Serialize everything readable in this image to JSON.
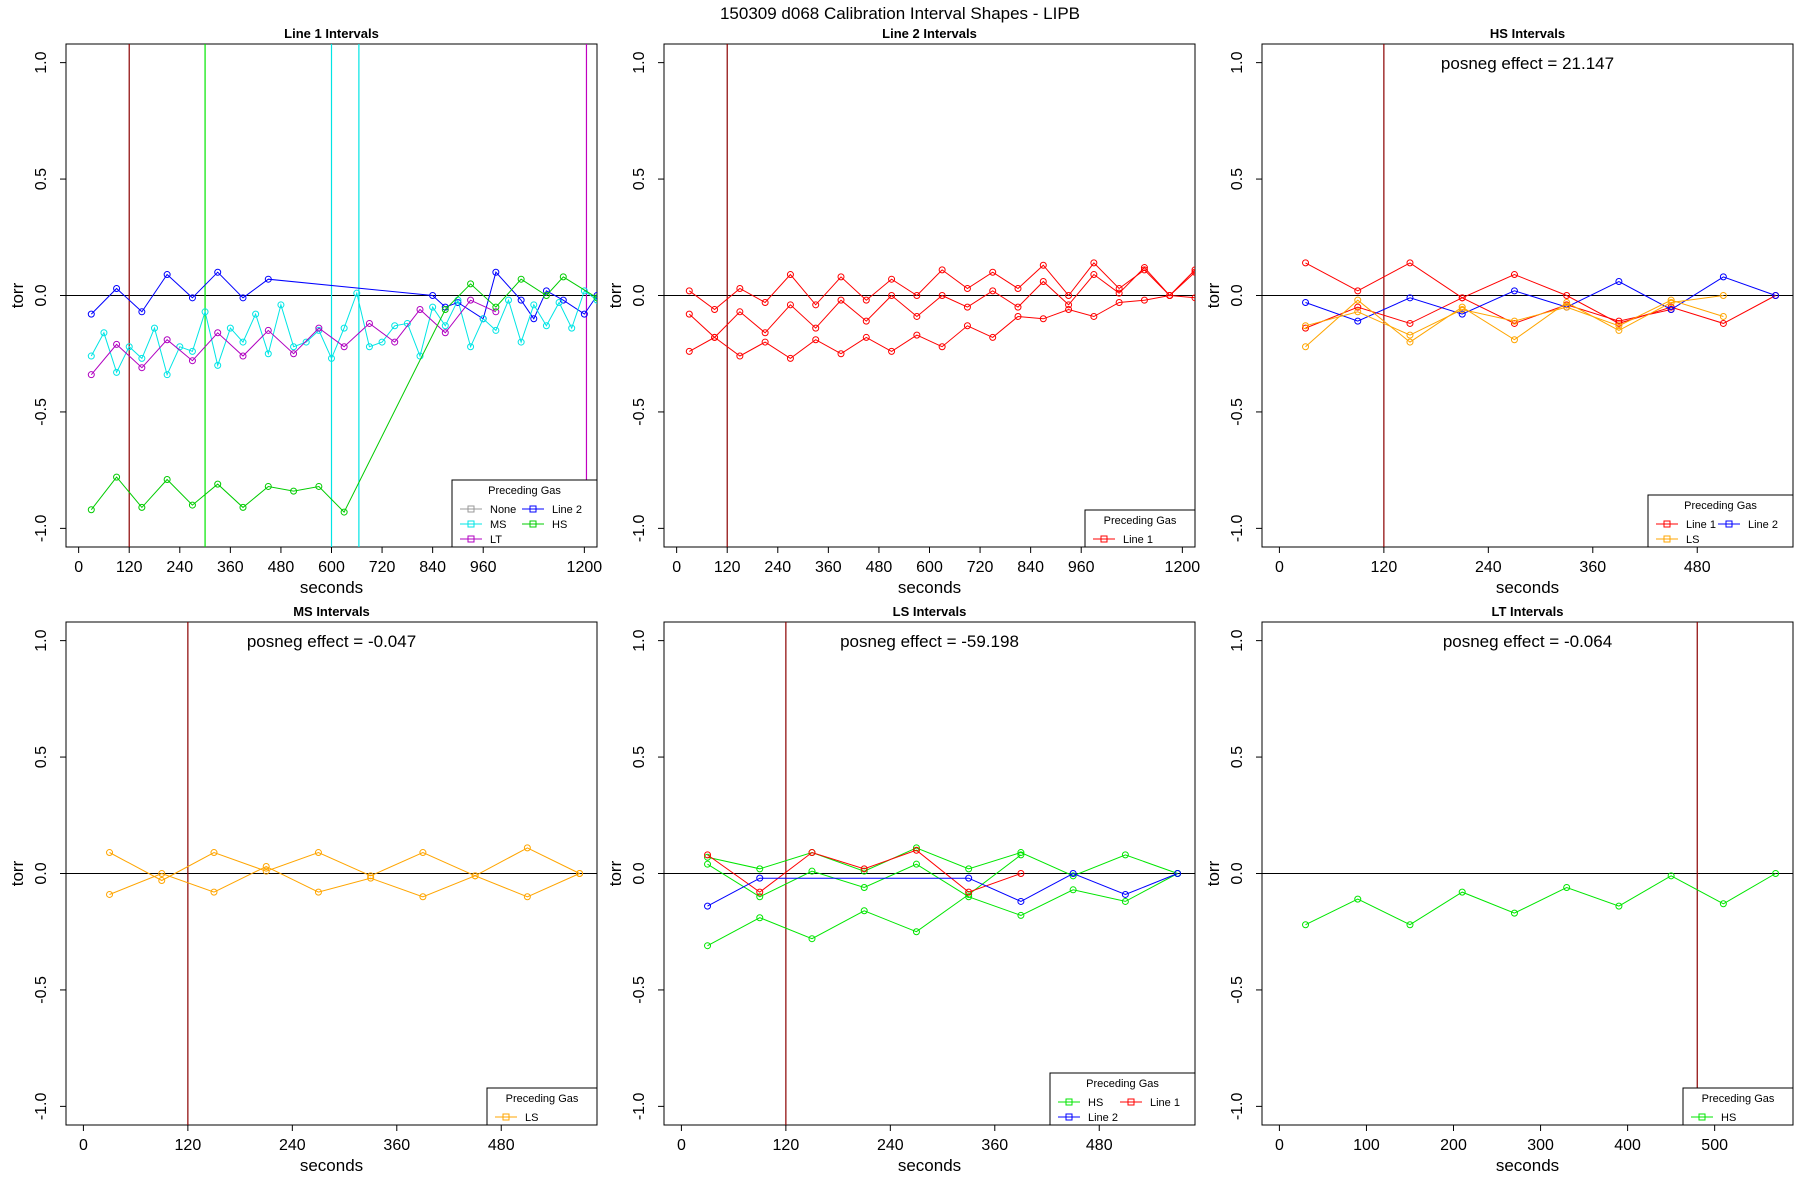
{
  "figure": {
    "title": "150309   d068   Calibration Interval Shapes - LIPB"
  },
  "chart_data": [
    {
      "type": "line",
      "title": "Line 1 Intervals",
      "xlabel": "seconds",
      "ylabel": "torr",
      "xlim": [
        -30,
        1230
      ],
      "ylim": [
        -1.08,
        1.08
      ],
      "xticks": [
        0,
        120,
        240,
        360,
        480,
        600,
        720,
        840,
        960,
        1200
      ],
      "yticks": [
        -1.0,
        -0.5,
        0.0,
        0.5,
        1.0
      ],
      "hline": 0,
      "vlines": [
        {
          "x": 120,
          "color": "#8b0000"
        },
        {
          "x": 300,
          "color": "#00e600"
        },
        {
          "x": 600,
          "color": "#00e5e5"
        },
        {
          "x": 665,
          "color": "#00e5e5"
        },
        {
          "x": 1205,
          "color": "#c000c0"
        }
      ],
      "annotation": "",
      "legend": {
        "title": "Preceding Gas",
        "position": "bottom-right",
        "columns": 2,
        "entries": [
          {
            "label": "None",
            "color": "#999999"
          },
          {
            "label": "Line 2",
            "color": "#0000ff"
          },
          {
            "label": "MS",
            "color": "#00e5e5"
          },
          {
            "label": "HS",
            "color": "#00cc00"
          },
          {
            "label": "LT",
            "color": "#b000c0"
          }
        ]
      },
      "series": [
        {
          "name": "Line 2",
          "color": "#0000ff",
          "x": [
            30,
            90,
            150,
            210,
            270,
            330,
            390,
            450,
            840,
            870,
            900,
            960,
            990,
            1050,
            1080,
            1110,
            1150,
            1200,
            1230
          ],
          "y": [
            -0.08,
            0.03,
            -0.07,
            0.09,
            -0.01,
            0.1,
            -0.01,
            0.07,
            0.0,
            -0.05,
            -0.03,
            -0.1,
            0.1,
            -0.02,
            -0.1,
            0.02,
            -0.02,
            -0.08,
            0.0
          ]
        },
        {
          "name": "MS",
          "color": "#00e5e5",
          "x": [
            30,
            60,
            90,
            120,
            150,
            180,
            210,
            240,
            270,
            300,
            330,
            360,
            390,
            420,
            450,
            480,
            510,
            540,
            570,
            600,
            630,
            660,
            690,
            720,
            750,
            780,
            810,
            840,
            870,
            900,
            930,
            960,
            990,
            1020,
            1050,
            1080,
            1110,
            1140,
            1170,
            1200,
            1230
          ],
          "y": [
            -0.26,
            -0.16,
            -0.33,
            -0.22,
            -0.27,
            -0.14,
            -0.34,
            -0.22,
            -0.24,
            -0.07,
            -0.3,
            -0.14,
            -0.2,
            -0.08,
            -0.25,
            -0.04,
            -0.22,
            -0.2,
            -0.15,
            -0.27,
            -0.14,
            0.01,
            -0.22,
            -0.2,
            -0.13,
            -0.12,
            -0.26,
            -0.05,
            -0.13,
            -0.02,
            -0.22,
            -0.1,
            -0.15,
            -0.02,
            -0.2,
            -0.04,
            -0.13,
            -0.03,
            -0.14,
            0.02,
            -0.02
          ]
        },
        {
          "name": "LT",
          "color": "#b000c0",
          "x": [
            30,
            90,
            150,
            210,
            270,
            330,
            390,
            450,
            510,
            570,
            630,
            690,
            750,
            810,
            870,
            930,
            990
          ],
          "y": [
            -0.34,
            -0.21,
            -0.31,
            -0.19,
            -0.28,
            -0.16,
            -0.26,
            -0.15,
            -0.25,
            -0.14,
            -0.22,
            -0.12,
            -0.2,
            -0.06,
            -0.16,
            -0.02,
            -0.07
          ]
        },
        {
          "name": "HS",
          "color": "#00cc00",
          "x": [
            30,
            90,
            150,
            210,
            270,
            330,
            390,
            450,
            510,
            570,
            630,
            870,
            930,
            990,
            1050,
            1110,
            1150,
            1230
          ],
          "y": [
            -0.92,
            -0.78,
            -0.91,
            -0.79,
            -0.9,
            -0.81,
            -0.91,
            -0.82,
            -0.84,
            -0.82,
            -0.93,
            -0.06,
            0.05,
            -0.05,
            0.07,
            0.0,
            0.08,
            -0.01
          ]
        }
      ]
    },
    {
      "type": "line",
      "title": "Line 2 Intervals",
      "xlabel": "seconds",
      "ylabel": "torr",
      "xlim": [
        -30,
        1230
      ],
      "ylim": [
        -1.08,
        1.08
      ],
      "xticks": [
        0,
        120,
        240,
        360,
        480,
        600,
        720,
        840,
        960,
        1200
      ],
      "yticks": [
        -1.0,
        -0.5,
        0.0,
        0.5,
        1.0
      ],
      "hline": 0,
      "vlines": [
        {
          "x": 120,
          "color": "#8b0000"
        }
      ],
      "annotation": "",
      "legend": {
        "title": "Preceding Gas",
        "position": "bottom-right",
        "columns": 1,
        "entries": [
          {
            "label": "Line 1",
            "color": "#ff0000"
          }
        ]
      },
      "series": [
        {
          "name": "Line 1 (a)",
          "color": "#ff0000",
          "x": [
            30,
            90,
            150,
            210,
            270,
            330,
            390,
            450,
            510,
            570,
            630,
            690,
            750,
            810,
            870,
            930,
            990,
            1050,
            1110,
            1170,
            1230
          ],
          "y": [
            0.02,
            -0.06,
            0.03,
            -0.03,
            0.09,
            -0.04,
            0.08,
            -0.02,
            0.07,
            0.0,
            0.11,
            0.03,
            0.1,
            0.03,
            0.13,
            0.0,
            0.14,
            0.03,
            0.11,
            0.0,
            0.11
          ]
        },
        {
          "name": "Line 1 (b)",
          "color": "#ff0000",
          "x": [
            30,
            90,
            150,
            210,
            270,
            330,
            390,
            450,
            510,
            570,
            630,
            690,
            750,
            810,
            870,
            930,
            990,
            1050,
            1110,
            1170,
            1230
          ],
          "y": [
            -0.08,
            -0.18,
            -0.07,
            -0.16,
            -0.04,
            -0.14,
            -0.02,
            -0.11,
            0.0,
            -0.09,
            0.0,
            -0.05,
            0.02,
            -0.05,
            0.06,
            -0.04,
            0.09,
            0.01,
            0.12,
            0.0,
            0.1
          ]
        },
        {
          "name": "Line 1 (c)",
          "color": "#ff0000",
          "x": [
            30,
            90,
            150,
            210,
            270,
            330,
            390,
            450,
            510,
            570,
            630,
            690,
            750,
            810,
            870,
            930,
            990,
            1050,
            1110,
            1170,
            1230
          ],
          "y": [
            -0.24,
            -0.18,
            -0.26,
            -0.2,
            -0.27,
            -0.19,
            -0.25,
            -0.18,
            -0.24,
            -0.17,
            -0.22,
            -0.13,
            -0.18,
            -0.09,
            -0.1,
            -0.06,
            -0.09,
            -0.03,
            -0.02,
            0.0,
            -0.01
          ]
        }
      ]
    },
    {
      "type": "line",
      "title": "HS Intervals",
      "xlabel": "seconds",
      "ylabel": "torr",
      "xlim": [
        -20,
        590
      ],
      "ylim": [
        -1.08,
        1.08
      ],
      "xticks": [
        0,
        120,
        240,
        360,
        480
      ],
      "yticks": [
        -1.0,
        -0.5,
        0.0,
        0.5,
        1.0
      ],
      "hline": 0,
      "vlines": [
        {
          "x": 120,
          "color": "#8b0000"
        }
      ],
      "annotation": "posneg effect = 21.147",
      "legend": {
        "title": "Preceding Gas",
        "position": "bottom-right",
        "columns": 2,
        "entries": [
          {
            "label": "Line 1",
            "color": "#ff0000"
          },
          {
            "label": "Line 2",
            "color": "#0000ff"
          },
          {
            "label": "LS",
            "color": "#ffa500"
          }
        ]
      },
      "series": [
        {
          "name": "Line 1 (a)",
          "color": "#ff0000",
          "x": [
            30,
            90,
            150,
            210,
            270,
            330,
            390,
            450,
            510,
            570
          ],
          "y": [
            0.14,
            0.02,
            0.14,
            -0.01,
            0.09,
            0.0,
            -0.12,
            -0.05,
            -0.12,
            0.0
          ]
        },
        {
          "name": "Line 1 (b)",
          "color": "#ff0000",
          "x": [
            30,
            90,
            150,
            210,
            270,
            330,
            390,
            450
          ],
          "y": [
            -0.14,
            -0.05,
            -0.12,
            -0.01,
            -0.12,
            -0.04,
            -0.11,
            -0.06
          ]
        },
        {
          "name": "Line 2",
          "color": "#0000ff",
          "x": [
            30,
            90,
            150,
            210,
            270,
            330,
            390,
            450,
            510,
            570
          ],
          "y": [
            -0.03,
            -0.11,
            -0.01,
            -0.08,
            0.02,
            -0.05,
            0.06,
            -0.06,
            0.08,
            0.0
          ]
        },
        {
          "name": "LS (a)",
          "color": "#ffa500",
          "x": [
            30,
            90,
            150,
            210,
            270,
            330,
            390,
            450,
            510
          ],
          "y": [
            -0.22,
            -0.02,
            -0.2,
            -0.05,
            -0.19,
            -0.03,
            -0.15,
            -0.03,
            0.0
          ]
        },
        {
          "name": "LS (b)",
          "color": "#ffa500",
          "x": [
            30,
            90,
            150,
            210,
            270,
            330,
            390,
            450,
            510
          ],
          "y": [
            -0.13,
            -0.07,
            -0.17,
            -0.06,
            -0.11,
            -0.05,
            -0.13,
            -0.02,
            -0.09
          ]
        }
      ]
    },
    {
      "type": "line",
      "title": "MS Intervals",
      "xlabel": "seconds",
      "ylabel": "torr",
      "xlim": [
        -20,
        590
      ],
      "ylim": [
        -1.08,
        1.08
      ],
      "xticks": [
        0,
        120,
        240,
        360,
        480
      ],
      "yticks": [
        -1.0,
        -0.5,
        0.0,
        0.5,
        1.0
      ],
      "hline": 0,
      "vlines": [
        {
          "x": 120,
          "color": "#8b0000"
        }
      ],
      "annotation": "posneg effect = -0.047",
      "legend": {
        "title": "Preceding Gas",
        "position": "bottom-right",
        "columns": 1,
        "entries": [
          {
            "label": "LS",
            "color": "#ffa500"
          }
        ]
      },
      "series": [
        {
          "name": "LS (a)",
          "color": "#ffa500",
          "x": [
            30,
            90,
            150,
            210,
            270,
            330,
            390,
            450,
            510,
            570
          ],
          "y": [
            0.09,
            -0.03,
            0.09,
            0.01,
            0.09,
            -0.01,
            0.09,
            -0.01,
            0.11,
            0.0
          ]
        },
        {
          "name": "LS (b)",
          "color": "#ffa500",
          "x": [
            30,
            90,
            150,
            210,
            270,
            330,
            390,
            450,
            510,
            570
          ],
          "y": [
            -0.09,
            0.0,
            -0.08,
            0.03,
            -0.08,
            -0.02,
            -0.1,
            -0.01,
            -0.1,
            0.0
          ]
        }
      ]
    },
    {
      "type": "line",
      "title": "LS Intervals",
      "xlabel": "seconds",
      "ylabel": "torr",
      "xlim": [
        -20,
        590
      ],
      "ylim": [
        -1.08,
        1.08
      ],
      "xticks": [
        0,
        120,
        240,
        360,
        480
      ],
      "yticks": [
        -1.0,
        -0.5,
        0.0,
        0.5,
        1.0
      ],
      "hline": 0,
      "vlines": [
        {
          "x": 120,
          "color": "#8b0000"
        }
      ],
      "annotation": "posneg effect = -59.198",
      "legend": {
        "title": "Preceding Gas",
        "position": "bottom-right",
        "columns": 2,
        "entries": [
          {
            "label": "HS",
            "color": "#00e600"
          },
          {
            "label": "Line 1",
            "color": "#ff0000"
          },
          {
            "label": "Line 2",
            "color": "#0000ff"
          }
        ]
      },
      "series": [
        {
          "name": "HS (a)",
          "color": "#00e600",
          "x": [
            30,
            90,
            150,
            210,
            270,
            330,
            390,
            450,
            510,
            570
          ],
          "y": [
            0.07,
            0.02,
            0.09,
            0.01,
            0.11,
            0.02,
            0.09,
            -0.01,
            0.08,
            0.0
          ]
        },
        {
          "name": "HS (b)",
          "color": "#00e600",
          "x": [
            30,
            90,
            150,
            210,
            270,
            330,
            390,
            450,
            510,
            570
          ],
          "y": [
            0.04,
            -0.1,
            0.01,
            -0.06,
            0.04,
            -0.1,
            -0.18,
            -0.07,
            -0.12,
            0.0
          ]
        },
        {
          "name": "HS (c)",
          "color": "#00e600",
          "x": [
            30,
            90,
            150,
            210,
            270,
            330,
            390
          ],
          "y": [
            -0.31,
            -0.19,
            -0.28,
            -0.16,
            -0.25,
            -0.09,
            0.08
          ]
        },
        {
          "name": "Line 1",
          "color": "#ff0000",
          "x": [
            30,
            90,
            150,
            210,
            270,
            330,
            390
          ],
          "y": [
            0.08,
            -0.08,
            0.09,
            0.02,
            0.1,
            -0.08,
            0.0
          ]
        },
        {
          "name": "Line 2",
          "color": "#0000ff",
          "x": [
            30,
            90,
            330,
            390,
            450,
            510,
            570
          ],
          "y": [
            -0.14,
            -0.02,
            -0.02,
            -0.12,
            0.0,
            -0.09,
            0.0
          ]
        }
      ]
    },
    {
      "type": "line",
      "title": "LT Intervals",
      "xlabel": "seconds",
      "ylabel": "torr",
      "xlim": [
        -20,
        590
      ],
      "ylim": [
        -1.08,
        1.08
      ],
      "xticks": [
        0,
        100,
        200,
        300,
        400,
        500
      ],
      "yticks": [
        -1.0,
        -0.5,
        0.0,
        0.5,
        1.0
      ],
      "hline": 0,
      "vlines": [
        {
          "x": 480,
          "color": "#8b0000"
        }
      ],
      "annotation": "posneg effect = -0.064",
      "legend": {
        "title": "Preceding Gas",
        "position": "bottom-right",
        "columns": 1,
        "entries": [
          {
            "label": "HS",
            "color": "#00e600"
          }
        ]
      },
      "series": [
        {
          "name": "HS",
          "color": "#00e600",
          "x": [
            30,
            90,
            150,
            210,
            270,
            330,
            390,
            450,
            510,
            570
          ],
          "y": [
            -0.22,
            -0.11,
            -0.22,
            -0.08,
            -0.17,
            -0.06,
            -0.14,
            -0.01,
            -0.13,
            0.0
          ]
        }
      ]
    }
  ]
}
